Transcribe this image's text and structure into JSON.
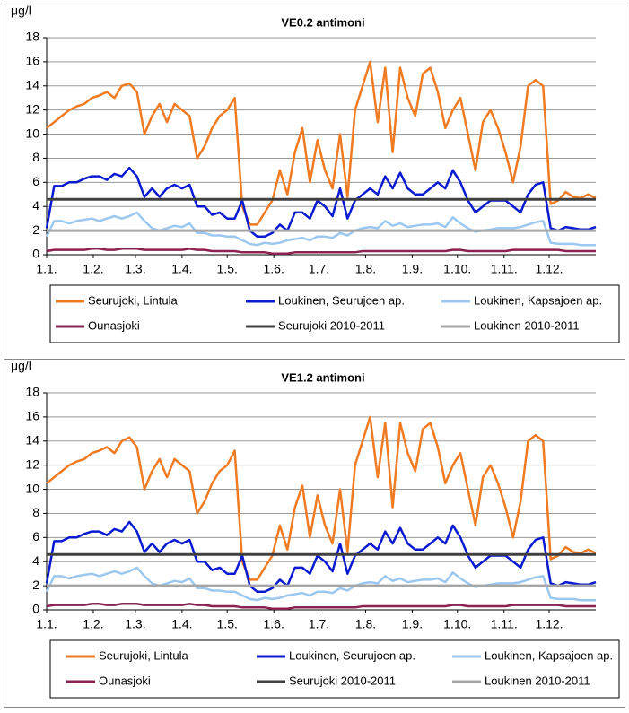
{
  "chart_data": [
    {
      "type": "line",
      "title": "VE0.2 antimoni",
      "y_label": "μg/l",
      "xlim": [
        0,
        365
      ],
      "xticks": [
        {
          "value": 0,
          "label": "1.1."
        },
        {
          "value": 31,
          "label": "1.2."
        },
        {
          "value": 59,
          "label": "1.3."
        },
        {
          "value": 90,
          "label": "1.4."
        },
        {
          "value": 120,
          "label": "1.5."
        },
        {
          "value": 151,
          "label": "1.6."
        },
        {
          "value": 181,
          "label": "1.7."
        },
        {
          "value": 212,
          "label": "1.8."
        },
        {
          "value": 243,
          "label": "1.9."
        },
        {
          "value": 273,
          "label": "1.10."
        },
        {
          "value": 304,
          "label": "1.11."
        },
        {
          "value": 334,
          "label": "1.12."
        }
      ],
      "ylim": [
        0,
        18
      ],
      "yticks": [
        0,
        2,
        4,
        6,
        8,
        10,
        12,
        14,
        16,
        18
      ],
      "grid": true,
      "x": [
        0,
        5,
        10,
        15,
        20,
        25,
        30,
        35,
        40,
        45,
        50,
        55,
        60,
        65,
        70,
        75,
        80,
        85,
        90,
        95,
        100,
        105,
        110,
        115,
        120,
        125,
        130,
        135,
        140,
        145,
        150,
        155,
        160,
        165,
        170,
        175,
        180,
        185,
        190,
        195,
        200,
        205,
        210,
        215,
        220,
        225,
        230,
        235,
        240,
        245,
        250,
        255,
        260,
        265,
        270,
        275,
        280,
        285,
        290,
        295,
        300,
        305,
        310,
        315,
        320,
        325,
        330,
        335,
        340,
        345,
        350,
        355,
        360,
        365
      ],
      "series": [
        {
          "name": "Seurujoki, Lintula",
          "color": "#f07b22",
          "values": [
            10.5,
            11,
            11.5,
            12,
            12.3,
            12.5,
            13,
            13.2,
            13.5,
            13,
            14,
            14.2,
            13.5,
            10,
            11.5,
            12.5,
            11,
            12.5,
            12,
            11.5,
            8,
            9,
            10.5,
            11.5,
            12,
            13,
            4,
            2.5,
            2.5,
            3.5,
            4.5,
            7,
            5,
            8.5,
            10.5,
            6,
            9.5,
            7,
            5.5,
            10,
            4.8,
            12,
            14,
            16,
            11,
            15.5,
            8.5,
            15.5,
            13,
            11.5,
            15,
            15.5,
            13.5,
            10.5,
            12,
            13,
            10,
            7,
            11,
            12,
            10.5,
            8.5,
            6,
            9,
            14,
            14.5,
            14,
            4.2,
            4.5,
            5.2,
            4.8,
            4.7,
            5,
            4.7
          ]
        },
        {
          "name": "Loukinen, Seurujoen ap.",
          "color": "#0a1ad0",
          "values": [
            2.2,
            5.7,
            5.7,
            6,
            6,
            6.3,
            6.5,
            6.5,
            6.2,
            6.7,
            6.5,
            7.2,
            6.5,
            4.8,
            5.5,
            4.8,
            5.5,
            5.8,
            5.5,
            5.8,
            4,
            4,
            3.3,
            3.5,
            3,
            3,
            4.5,
            2,
            1.5,
            1.5,
            1.8,
            2.5,
            2,
            3.5,
            3.5,
            3,
            4.5,
            4,
            3.2,
            5.5,
            3,
            4.5,
            5,
            5.5,
            5,
            6.5,
            5.5,
            6.8,
            5.5,
            5,
            5,
            5.5,
            6,
            5.5,
            7,
            6,
            4.5,
            3.5,
            4,
            4.5,
            4.5,
            4.5,
            4,
            3.5,
            5,
            5.8,
            6,
            2.2,
            2,
            2.3,
            2.2,
            2.1,
            2.1,
            2.3
          ]
        },
        {
          "name": "Loukinen, Kapsajoen ap.",
          "color": "#9cc8f0",
          "values": [
            1.5,
            2.8,
            2.8,
            2.6,
            2.8,
            2.9,
            3,
            2.8,
            3,
            3.2,
            3,
            3.2,
            3.5,
            2.8,
            2.2,
            2,
            2.2,
            2.4,
            2.3,
            2.6,
            1.8,
            1.8,
            1.6,
            1.6,
            1.5,
            1.5,
            1.2,
            0.9,
            0.8,
            1,
            0.9,
            1,
            1.2,
            1.3,
            1.4,
            1.2,
            1.5,
            1.5,
            1.4,
            1.8,
            1.6,
            2,
            2.2,
            2.3,
            2.2,
            2.8,
            2.4,
            2.6,
            2.3,
            2.4,
            2.5,
            2.5,
            2.6,
            2.3,
            3.1,
            2.6,
            2.2,
            1.9,
            2,
            2.1,
            2.2,
            2.2,
            2.2,
            2.3,
            2.5,
            2.7,
            2.8,
            1,
            0.9,
            0.9,
            0.9,
            0.8,
            0.8,
            0.8
          ]
        },
        {
          "name": "Ounasjoki",
          "color": "#8b2252",
          "values": [
            0.3,
            0.4,
            0.4,
            0.4,
            0.4,
            0.4,
            0.5,
            0.5,
            0.4,
            0.4,
            0.5,
            0.5,
            0.5,
            0.4,
            0.4,
            0.4,
            0.4,
            0.4,
            0.4,
            0.5,
            0.4,
            0.4,
            0.3,
            0.3,
            0.3,
            0.3,
            0.2,
            0.2,
            0.2,
            0.2,
            0.1,
            0.1,
            0.1,
            0.2,
            0.2,
            0.2,
            0.2,
            0.2,
            0.2,
            0.2,
            0.2,
            0.2,
            0.3,
            0.3,
            0.3,
            0.3,
            0.3,
            0.3,
            0.3,
            0.3,
            0.3,
            0.3,
            0.3,
            0.3,
            0.4,
            0.4,
            0.3,
            0.3,
            0.3,
            0.3,
            0.3,
            0.3,
            0.4,
            0.4,
            0.4,
            0.4,
            0.4,
            0.4,
            0.4,
            0.3,
            0.3,
            0.3,
            0.3,
            0.3
          ]
        },
        {
          "name": "Seurujoki 2010-2011",
          "color": "#404040",
          "x": [
            0,
            365
          ],
          "values": [
            4.6,
            4.6
          ]
        },
        {
          "name": "Loukinen 2010-2011",
          "color": "#a6a6a6",
          "x": [
            0,
            365
          ],
          "values": [
            2,
            2
          ]
        }
      ]
    },
    {
      "type": "line",
      "title": "VE1.2 antimoni",
      "y_label": "μg/l",
      "xlim": [
        0,
        365
      ],
      "xticks": [
        {
          "value": 0,
          "label": "1.1."
        },
        {
          "value": 31,
          "label": "1.2."
        },
        {
          "value": 59,
          "label": "1.3."
        },
        {
          "value": 90,
          "label": "1.4."
        },
        {
          "value": 120,
          "label": "1.5."
        },
        {
          "value": 151,
          "label": "1.6."
        },
        {
          "value": 181,
          "label": "1.7."
        },
        {
          "value": 212,
          "label": "1.8."
        },
        {
          "value": 243,
          "label": "1.9."
        },
        {
          "value": 273,
          "label": "1.10."
        },
        {
          "value": 304,
          "label": "1.11."
        },
        {
          "value": 334,
          "label": "1.12."
        }
      ],
      "ylim": [
        0,
        18
      ],
      "yticks": [
        0,
        2,
        4,
        6,
        8,
        10,
        12,
        14,
        16,
        18
      ],
      "grid": true,
      "x": [
        0,
        5,
        10,
        15,
        20,
        25,
        30,
        35,
        40,
        45,
        50,
        55,
        60,
        65,
        70,
        75,
        80,
        85,
        90,
        95,
        100,
        105,
        110,
        115,
        120,
        125,
        130,
        135,
        140,
        145,
        150,
        155,
        160,
        165,
        170,
        175,
        180,
        185,
        190,
        195,
        200,
        205,
        210,
        215,
        220,
        225,
        230,
        235,
        240,
        245,
        250,
        255,
        260,
        265,
        270,
        275,
        280,
        285,
        290,
        295,
        300,
        305,
        310,
        315,
        320,
        325,
        330,
        335,
        340,
        345,
        350,
        355,
        360,
        365
      ],
      "series": [
        {
          "name": "Seurujoki, Lintula",
          "color": "#f07b22",
          "values": [
            10.5,
            11,
            11.5,
            12,
            12.3,
            12.5,
            13,
            13.2,
            13.5,
            13,
            14,
            14.3,
            13.5,
            10,
            11.5,
            12.5,
            11,
            12.5,
            12,
            11.5,
            8,
            9,
            10.5,
            11.5,
            12,
            13.2,
            4,
            2.5,
            2.5,
            3.5,
            4.5,
            7,
            5,
            8.5,
            10.3,
            6,
            9.5,
            7,
            5.5,
            10,
            4.8,
            12,
            14,
            16,
            11,
            15.5,
            8.5,
            15.5,
            13,
            11.5,
            15,
            15.5,
            13.5,
            10.5,
            12,
            13,
            10,
            7,
            11,
            12,
            10.5,
            8.5,
            6,
            9,
            14,
            14.5,
            14,
            4.2,
            4.5,
            5.2,
            4.8,
            4.7,
            5,
            4.7
          ]
        },
        {
          "name": "Loukinen, Seurujoen ap.",
          "color": "#0a1ad0",
          "values": [
            2.2,
            5.7,
            5.7,
            6,
            6,
            6.3,
            6.5,
            6.5,
            6.2,
            6.7,
            6.5,
            7.3,
            6.5,
            4.8,
            5.5,
            4.8,
            5.5,
            5.8,
            5.5,
            5.8,
            4,
            4,
            3.3,
            3.5,
            3,
            3,
            4.5,
            2,
            1.5,
            1.5,
            1.8,
            2.5,
            2,
            3.5,
            3.5,
            3,
            4.5,
            4,
            3.2,
            5.5,
            3,
            4.5,
            5,
            5.5,
            5,
            6.5,
            5.5,
            6.8,
            5.5,
            5,
            5,
            5.5,
            6,
            5.5,
            7,
            6,
            4.5,
            3.5,
            4,
            4.5,
            4.5,
            4.5,
            4,
            3.5,
            5,
            5.8,
            6,
            2.2,
            2,
            2.3,
            2.2,
            2.1,
            2.1,
            2.3
          ]
        },
        {
          "name": "Loukinen, Kapsajoen ap.",
          "color": "#9cc8f0",
          "values": [
            1.5,
            2.8,
            2.8,
            2.6,
            2.8,
            2.9,
            3,
            2.8,
            3,
            3.2,
            3,
            3.2,
            3.5,
            2.8,
            2.2,
            2,
            2.2,
            2.4,
            2.3,
            2.6,
            1.8,
            1.8,
            1.6,
            1.6,
            1.5,
            1.5,
            1.2,
            0.9,
            0.8,
            1,
            0.9,
            1,
            1.2,
            1.3,
            1.4,
            1.2,
            1.5,
            1.5,
            1.4,
            1.8,
            1.6,
            2,
            2.2,
            2.3,
            2.2,
            2.8,
            2.4,
            2.6,
            2.3,
            2.4,
            2.5,
            2.5,
            2.6,
            2.3,
            3.1,
            2.6,
            2.2,
            1.9,
            2,
            2.1,
            2.2,
            2.2,
            2.2,
            2.3,
            2.5,
            2.7,
            2.8,
            1,
            0.9,
            0.9,
            0.9,
            0.8,
            0.8,
            0.8
          ]
        },
        {
          "name": "Ounasjoki",
          "color": "#8b2252",
          "values": [
            0.3,
            0.4,
            0.4,
            0.4,
            0.4,
            0.4,
            0.5,
            0.5,
            0.4,
            0.4,
            0.5,
            0.5,
            0.5,
            0.4,
            0.4,
            0.4,
            0.4,
            0.4,
            0.4,
            0.5,
            0.4,
            0.4,
            0.3,
            0.3,
            0.3,
            0.3,
            0.2,
            0.2,
            0.2,
            0.2,
            0.1,
            0.1,
            0.1,
            0.2,
            0.2,
            0.2,
            0.2,
            0.2,
            0.2,
            0.2,
            0.2,
            0.2,
            0.3,
            0.3,
            0.3,
            0.3,
            0.3,
            0.3,
            0.3,
            0.3,
            0.3,
            0.3,
            0.3,
            0.3,
            0.4,
            0.4,
            0.3,
            0.3,
            0.3,
            0.3,
            0.3,
            0.3,
            0.4,
            0.4,
            0.4,
            0.4,
            0.4,
            0.4,
            0.4,
            0.3,
            0.3,
            0.3,
            0.3,
            0.3
          ]
        },
        {
          "name": "Seurujoki 2010-2011",
          "color": "#404040",
          "x": [
            0,
            365
          ],
          "values": [
            4.6,
            4.6
          ]
        },
        {
          "name": "Loukinen 2010-2011",
          "color": "#a6a6a6",
          "x": [
            0,
            365
          ],
          "values": [
            2,
            2
          ]
        }
      ]
    }
  ]
}
